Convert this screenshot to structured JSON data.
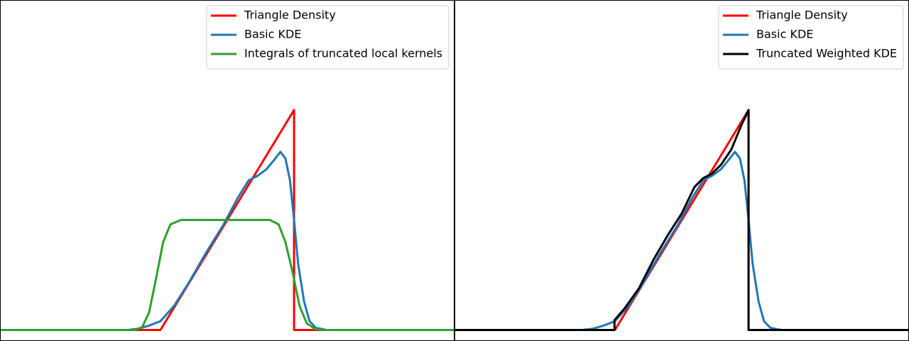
{
  "chart_data": [
    {
      "type": "line",
      "xlim": [
        0,
        10
      ],
      "ylim": [
        -0.05,
        1.5
      ],
      "legend": "upper right",
      "series": [
        {
          "name": "Triangle Density",
          "color": "#ff0000",
          "x": [
            0,
            3.53,
            6.47,
            6.47,
            10
          ],
          "values": [
            0,
            0,
            1,
            0,
            0
          ]
        },
        {
          "name": "Basic KDE",
          "color": "#1f77b4",
          "x": [
            0,
            2.81,
            3.05,
            3.28,
            3.53,
            3.83,
            4.14,
            4.53,
            4.92,
            5.23,
            5.47,
            5.66,
            5.86,
            6.02,
            6.17,
            6.28,
            6.38,
            6.47,
            6.56,
            6.69,
            6.81,
            6.95,
            7.19,
            10
          ],
          "values": [
            0,
            0,
            0.006,
            0.02,
            0.04,
            0.11,
            0.21,
            0.35,
            0.48,
            0.6,
            0.68,
            0.7,
            0.73,
            0.77,
            0.81,
            0.78,
            0.68,
            0.5,
            0.3,
            0.13,
            0.04,
            0.01,
            0,
            0
          ]
        },
        {
          "name": "Integrals of truncated local kernels",
          "color": "#2ca02c",
          "x": [
            0,
            2.97,
            3.13,
            3.28,
            3.44,
            3.59,
            3.75,
            3.98,
            5.94,
            6.13,
            6.28,
            6.44,
            6.59,
            6.75,
            6.95,
            7.19,
            10
          ],
          "values": [
            0,
            0,
            0.013,
            0.08,
            0.24,
            0.4,
            0.48,
            0.5,
            0.5,
            0.48,
            0.4,
            0.26,
            0.11,
            0.03,
            0.003,
            0,
            0
          ]
        }
      ]
    },
    {
      "type": "line",
      "xlim": [
        0,
        10
      ],
      "ylim": [
        -0.05,
        1.5
      ],
      "legend": "upper right",
      "series": [
        {
          "name": "Triangle Density",
          "color": "#ff0000",
          "x": [
            0,
            3.53,
            6.47,
            6.47,
            10
          ],
          "values": [
            0,
            0,
            1,
            0,
            0
          ]
        },
        {
          "name": "Basic KDE",
          "color": "#1f77b4",
          "x": [
            0,
            2.81,
            3.05,
            3.28,
            3.53,
            3.83,
            4.14,
            4.53,
            4.92,
            5.23,
            5.47,
            5.66,
            5.86,
            6.02,
            6.17,
            6.28,
            6.38,
            6.47,
            6.56,
            6.69,
            6.81,
            6.95,
            7.19,
            10
          ],
          "values": [
            0,
            0,
            0.006,
            0.02,
            0.04,
            0.11,
            0.21,
            0.35,
            0.48,
            0.6,
            0.68,
            0.7,
            0.73,
            0.77,
            0.81,
            0.78,
            0.68,
            0.5,
            0.3,
            0.13,
            0.04,
            0.01,
            0,
            0
          ]
        },
        {
          "name": "Truncated Weighted KDE",
          "color": "#000000",
          "x": [
            0,
            3.52,
            3.52,
            3.75,
            4.06,
            4.38,
            4.69,
            5,
            5.28,
            5.47,
            5.66,
            5.86,
            6.09,
            6.33,
            6.45,
            6.47,
            6.47,
            10
          ],
          "values": [
            0,
            0,
            0.045,
            0.1,
            0.19,
            0.32,
            0.43,
            0.53,
            0.65,
            0.69,
            0.71,
            0.75,
            0.82,
            0.94,
            0.99,
            1,
            0,
            0
          ]
        }
      ]
    }
  ]
}
